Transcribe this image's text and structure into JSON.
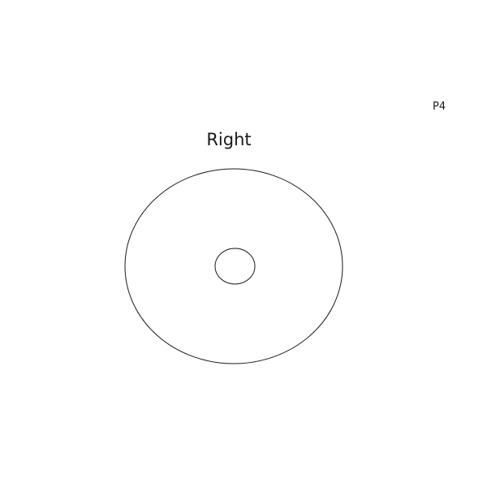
{
  "page_id": "P4",
  "view_label": "Right",
  "colors": {
    "background": "#ffffff",
    "stroke": "#1a1a1a",
    "text": "#1a1a1a"
  }
}
